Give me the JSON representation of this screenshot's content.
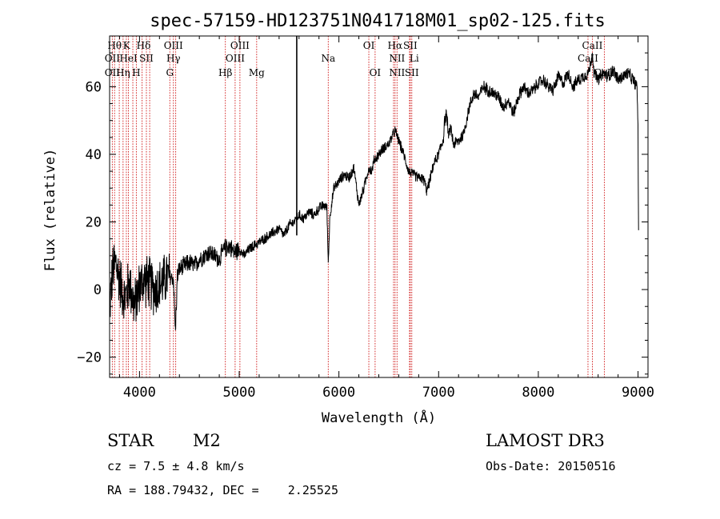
{
  "chart_data": {
    "type": "line",
    "title": "spec-57159-HD123751N041718M01_sp02-125.fits",
    "xlabel": "Wavelength (Å)",
    "ylabel": "Flux (relative)",
    "xlim": [
      3700,
      9100
    ],
    "ylim": [
      -26,
      75
    ],
    "x_ticks": [
      4000,
      5000,
      6000,
      7000,
      8000,
      9000
    ],
    "x_tick_labels": [
      "4000",
      "5000",
      "6000",
      "7000",
      "8000",
      "9000"
    ],
    "y_ticks": [
      -20,
      0,
      20,
      40,
      60
    ],
    "y_tick_labels": [
      "−20",
      "0",
      "20",
      "40",
      "60"
    ],
    "spike": {
      "x": 5577,
      "y_top": 75,
      "y_bottom": 16
    },
    "series": [
      {
        "name": "flux",
        "x": [
          3700,
          3730,
          3760,
          3800,
          3850,
          3900,
          3950,
          4000,
          4050,
          4100,
          4150,
          4200,
          4250,
          4300,
          4340,
          4360,
          4380,
          4400,
          4450,
          4500,
          4550,
          4600,
          4650,
          4700,
          4750,
          4800,
          4850,
          4900,
          4950,
          5000,
          5050,
          5100,
          5150,
          5200,
          5250,
          5300,
          5350,
          5400,
          5450,
          5500,
          5550,
          5600,
          5650,
          5700,
          5750,
          5800,
          5850,
          5880,
          5893,
          5910,
          5950,
          6000,
          6050,
          6100,
          6150,
          6200,
          6250,
          6300,
          6330,
          6350,
          6400,
          6450,
          6500,
          6530,
          6563,
          6600,
          6650,
          6700,
          6750,
          6800,
          6830,
          6860,
          6880,
          6900,
          6950,
          7000,
          7050,
          7060,
          7080,
          7100,
          7120,
          7150,
          7200,
          7250,
          7300,
          7350,
          7400,
          7450,
          7500,
          7550,
          7600,
          7650,
          7700,
          7750,
          7800,
          7850,
          7900,
          7950,
          8000,
          8050,
          8100,
          8150,
          8200,
          8250,
          8300,
          8350,
          8400,
          8450,
          8500,
          8520,
          8542,
          8560,
          8600,
          8650,
          8700,
          8750,
          8800,
          8850,
          8900,
          8950,
          8990,
          9000,
          9005
        ],
        "values": [
          -5,
          5,
          8,
          3,
          -3,
          2,
          -5,
          1,
          3,
          2,
          0,
          1,
          3,
          4,
          3,
          -12,
          4,
          6,
          7,
          8,
          7,
          9,
          10,
          11,
          10,
          9,
          12,
          13,
          11,
          12,
          10,
          12,
          13,
          14,
          15,
          16,
          17,
          18,
          16,
          19,
          20,
          22,
          21,
          23,
          22,
          24,
          25,
          24,
          8,
          22,
          30,
          32,
          34,
          33,
          36,
          25,
          30,
          36,
          35,
          38,
          40,
          42,
          43,
          45,
          47,
          44,
          40,
          35,
          34,
          33,
          33,
          32,
          29,
          31,
          37,
          40,
          45,
          50,
          52,
          45,
          48,
          43,
          44,
          46,
          53,
          58,
          57,
          60,
          59,
          58,
          57,
          54,
          56,
          52,
          57,
          60,
          58,
          59,
          61,
          62,
          60,
          59,
          63,
          61,
          64,
          60,
          62,
          63,
          64,
          66,
          70,
          64,
          62,
          64,
          63,
          65,
          62,
          63,
          64,
          62,
          60,
          48,
          18
        ]
      }
    ],
    "lines_tick": [
      {
        "x": 3750,
        "label": "Hθ",
        "row": 0,
        "la": "middle"
      },
      {
        "x": 3870,
        "label": "K",
        "row": 0,
        "la": "middle"
      },
      {
        "x": 3970,
        "label": "Hδ",
        "row": 0,
        "la": "start"
      },
      {
        "x": 4340,
        "label": "OIII",
        "row": 0,
        "la": "middle"
      },
      {
        "x": 5007,
        "label": "OIII",
        "row": 0,
        "la": "middle"
      },
      {
        "x": 6300,
        "label": "OI",
        "row": 0,
        "la": "middle"
      },
      {
        "x": 6563,
        "label": "Hα",
        "row": 0,
        "la": "middle"
      },
      {
        "x": 6716,
        "label": "SII",
        "row": 0,
        "la": "middle"
      },
      {
        "x": 8542,
        "label": "CaII",
        "row": 0,
        "la": "middle"
      },
      {
        "x": 3727,
        "label": "OII",
        "row": 1,
        "la": "middle"
      },
      {
        "x": 3889,
        "label": "HeI",
        "row": 1,
        "la": "middle"
      },
      {
        "x": 4069,
        "label": "SII",
        "row": 1,
        "la": "middle"
      },
      {
        "x": 4340,
        "label": "Hγ",
        "row": 1,
        "la": "middle"
      },
      {
        "x": 4959,
        "label": "OIII",
        "row": 1,
        "la": "middle"
      },
      {
        "x": 5893,
        "label": "Na",
        "row": 1,
        "la": "middle"
      },
      {
        "x": 6583,
        "label": "NII",
        "row": 1,
        "la": "middle"
      },
      {
        "x": 6708,
        "label": "Li",
        "row": 1,
        "la": "start"
      },
      {
        "x": 8498,
        "label": "CaII",
        "row": 1,
        "la": "middle"
      },
      {
        "x": 3727,
        "label": "OII",
        "row": 2,
        "la": "middle"
      },
      {
        "x": 3835,
        "label": "Hη",
        "row": 2,
        "la": "middle"
      },
      {
        "x": 3968,
        "label": "H",
        "row": 2,
        "la": "middle"
      },
      {
        "x": 4304,
        "label": "G",
        "row": 2,
        "la": "middle"
      },
      {
        "x": 4861,
        "label": "Hβ",
        "row": 2,
        "la": "middle"
      },
      {
        "x": 5175,
        "label": "Mg",
        "row": 2,
        "la": "middle"
      },
      {
        "x": 6363,
        "label": "OI",
        "row": 2,
        "la": "middle"
      },
      {
        "x": 6583,
        "label": "NII",
        "row": 2,
        "la": "middle"
      },
      {
        "x": 6731,
        "label": "SII",
        "row": 2,
        "la": "middle"
      },
      {
        "x": 8662,
        "label": "CaII",
        "row": 2,
        "la": "middle"
      }
    ],
    "marker_lines_x": [
      3727,
      3750,
      3797,
      3835,
      3868,
      3889,
      3933,
      3968,
      4026,
      4069,
      4102,
      4304,
      4340,
      4363,
      4861,
      4959,
      5007,
      5175,
      5893,
      6300,
      6363,
      6548,
      6563,
      6583,
      6708,
      6716,
      6731,
      8498,
      8542,
      8662
    ]
  },
  "info": {
    "object_class": "STAR",
    "subclass": "M2",
    "survey": "LAMOST DR3",
    "cz": "cz = 7.5 ± 4.8 km/s",
    "obs_date": "Obs-Date: 20150516",
    "coords": "RA = 188.79432, DEC =    2.25525"
  },
  "colors": {
    "marker_line": "#d01818",
    "spectrum": "#000000"
  }
}
